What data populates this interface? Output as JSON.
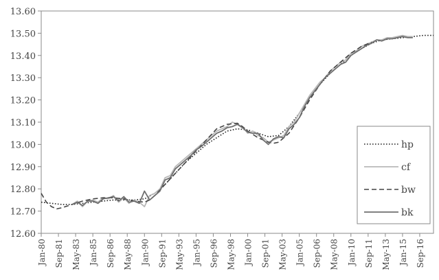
{
  "chart_data": {
    "type": "line",
    "title": "",
    "xlabel": "",
    "ylabel": "",
    "ylim": [
      12.6,
      13.6
    ],
    "yticks": [
      12.6,
      12.7,
      12.8,
      12.9,
      13.0,
      13.1,
      13.2,
      13.3,
      13.4,
      13.5,
      13.6
    ],
    "ytick_labels": [
      "12.60",
      "12.70",
      "12.80",
      "12.90",
      "13.00",
      "13.10",
      "13.20",
      "13.30",
      "13.40",
      "13.50",
      "13.60"
    ],
    "xlim": [
      "1980-01",
      "2018-01"
    ],
    "xtick_labels": [
      "Jan-80",
      "Sep-81",
      "May-83",
      "Jan-85",
      "Sep-86",
      "May-88",
      "Jan-90",
      "Sep-91",
      "May-93",
      "Jan-95",
      "Sep-96",
      "May-98",
      "Jan-00",
      "Sep-01",
      "May-03",
      "Jan-05",
      "Sep-06",
      "May-08",
      "Jan-10",
      "Sep-11",
      "May-13",
      "Jan-15",
      "Sep-16"
    ],
    "grid": false,
    "legend_position": "right",
    "series": [
      {
        "name": "hp",
        "style": "dotted",
        "color": "#222222",
        "x": [
          "1980-01",
          "1981-01",
          "1982-01",
          "1983-01",
          "1984-01",
          "1985-01",
          "1986-01",
          "1987-01",
          "1988-01",
          "1989-01",
          "1990-01",
          "1991-01",
          "1992-01",
          "1993-01",
          "1994-01",
          "1995-01",
          "1996-01",
          "1997-01",
          "1998-01",
          "1999-01",
          "2000-01",
          "2001-01",
          "2002-01",
          "2003-01",
          "2004-01",
          "2005-01",
          "2006-01",
          "2007-01",
          "2008-01",
          "2009-01",
          "2010-01",
          "2011-01",
          "2012-01",
          "2013-01",
          "2014-01",
          "2015-01",
          "2016-01",
          "2017-01",
          "2018-01"
        ],
        "y": [
          12.74,
          12.735,
          12.73,
          12.73,
          12.735,
          12.74,
          12.745,
          12.75,
          12.75,
          12.75,
          12.755,
          12.78,
          12.82,
          12.87,
          12.92,
          12.96,
          13.0,
          13.03,
          13.06,
          13.07,
          13.065,
          13.05,
          13.035,
          13.04,
          13.08,
          13.14,
          13.21,
          13.27,
          13.32,
          13.36,
          13.4,
          13.43,
          13.455,
          13.47,
          13.475,
          13.48,
          13.485,
          13.49,
          13.49
        ]
      },
      {
        "name": "cf",
        "style": "solid",
        "color": "#b8b8b8",
        "x": [
          "1983-01",
          "1983-07",
          "1984-01",
          "1984-07",
          "1985-01",
          "1985-07",
          "1986-01",
          "1986-07",
          "1987-01",
          "1987-07",
          "1988-01",
          "1988-07",
          "1989-01",
          "1989-07",
          "1990-01",
          "1990-07",
          "1991-01",
          "1991-07",
          "1992-01",
          "1992-07",
          "1993-01",
          "1993-07",
          "1994-01",
          "1994-07",
          "1995-01",
          "1995-07",
          "1996-01",
          "1996-07",
          "1997-01",
          "1997-07",
          "1998-01",
          "1998-07",
          "1999-01",
          "1999-07",
          "2000-01",
          "2000-07",
          "2001-01",
          "2001-07",
          "2002-01",
          "2002-07",
          "2003-01",
          "2003-07",
          "2004-01",
          "2004-07",
          "2005-01",
          "2005-07",
          "2006-01",
          "2006-07",
          "2007-01",
          "2007-07",
          "2008-01",
          "2008-07",
          "2009-01",
          "2009-07",
          "2010-01",
          "2010-07",
          "2011-01",
          "2011-07",
          "2012-01",
          "2012-07",
          "2013-01",
          "2013-07",
          "2014-01",
          "2014-07",
          "2015-01",
          "2015-07",
          "2016-01"
        ],
        "y": [
          12.73,
          12.745,
          12.72,
          12.745,
          12.75,
          12.74,
          12.76,
          12.755,
          12.77,
          12.74,
          12.76,
          12.735,
          12.75,
          12.74,
          12.72,
          12.77,
          12.78,
          12.8,
          12.85,
          12.86,
          12.9,
          12.92,
          12.94,
          12.96,
          12.98,
          13.0,
          13.02,
          13.04,
          13.06,
          13.07,
          13.08,
          13.1,
          13.09,
          13.08,
          13.05,
          13.06,
          13.04,
          13.03,
          13.01,
          13.02,
          13.03,
          13.04,
          13.08,
          13.1,
          13.14,
          13.18,
          13.22,
          13.25,
          13.28,
          13.3,
          13.33,
          13.35,
          13.37,
          13.38,
          13.41,
          13.42,
          13.44,
          13.45,
          13.46,
          13.47,
          13.47,
          13.48,
          13.48,
          13.485,
          13.49,
          13.485,
          13.485
        ]
      },
      {
        "name": "bw",
        "style": "dashed",
        "color": "#444444",
        "x": [
          "1980-01",
          "1980-07",
          "1981-01",
          "1981-07",
          "1982-01",
          "1983-01",
          "1984-01",
          "1985-01",
          "1986-01",
          "1987-01",
          "1988-01",
          "1989-01",
          "1990-01",
          "1990-07",
          "1991-01",
          "1992-01",
          "1993-01",
          "1994-01",
          "1995-01",
          "1996-01",
          "1997-01",
          "1998-01",
          "1999-01",
          "1999-07",
          "2000-01",
          "2001-01",
          "2002-01",
          "2002-07",
          "2003-01",
          "2004-01",
          "2005-01",
          "2006-01",
          "2007-01",
          "2008-01",
          "2009-01",
          "2010-01",
          "2011-01",
          "2012-01"
        ],
        "y": [
          12.78,
          12.74,
          12.72,
          12.71,
          12.715,
          12.73,
          12.745,
          12.755,
          12.76,
          12.76,
          12.755,
          12.745,
          12.74,
          12.75,
          12.77,
          12.82,
          12.87,
          12.92,
          12.97,
          13.02,
          13.07,
          13.09,
          13.095,
          13.08,
          13.06,
          13.03,
          13.01,
          13.005,
          13.01,
          13.05,
          13.12,
          13.2,
          13.27,
          13.33,
          13.37,
          13.41,
          13.44,
          13.46
        ]
      },
      {
        "name": "bk",
        "style": "solid",
        "color": "#6e6e6e",
        "x": [
          "1983-01",
          "1983-07",
          "1984-01",
          "1984-07",
          "1985-01",
          "1985-07",
          "1986-01",
          "1986-07",
          "1987-01",
          "1987-07",
          "1988-01",
          "1988-07",
          "1989-01",
          "1989-07",
          "1990-01",
          "1990-07",
          "1991-01",
          "1991-07",
          "1992-01",
          "1992-07",
          "1993-01",
          "1993-07",
          "1994-01",
          "1994-07",
          "1995-01",
          "1995-07",
          "1996-01",
          "1996-07",
          "1997-01",
          "1997-07",
          "1998-01",
          "1998-07",
          "1999-01",
          "1999-07",
          "2000-01",
          "2000-07",
          "2001-01",
          "2001-07",
          "2002-01",
          "2002-07",
          "2003-01",
          "2003-07",
          "2004-01",
          "2004-07",
          "2005-01",
          "2005-07",
          "2006-01",
          "2006-07",
          "2007-01",
          "2007-07",
          "2008-01",
          "2008-07",
          "2009-01",
          "2009-07",
          "2010-01",
          "2010-07",
          "2011-01",
          "2011-07",
          "2012-01",
          "2012-07",
          "2013-01",
          "2013-07",
          "2014-01",
          "2014-07",
          "2015-01",
          "2015-07",
          "2016-01"
        ],
        "y": [
          12.73,
          12.74,
          12.725,
          12.745,
          12.745,
          12.735,
          12.755,
          12.76,
          12.765,
          12.745,
          12.765,
          12.74,
          12.745,
          12.735,
          12.79,
          12.75,
          12.77,
          12.79,
          12.84,
          12.85,
          12.89,
          12.91,
          12.93,
          12.95,
          12.975,
          12.99,
          13.01,
          13.03,
          13.05,
          13.06,
          13.075,
          13.08,
          13.09,
          13.075,
          13.055,
          13.05,
          13.05,
          13.02,
          13.0,
          13.025,
          13.035,
          13.03,
          13.07,
          13.09,
          13.12,
          13.17,
          13.21,
          13.24,
          13.27,
          13.3,
          13.32,
          13.34,
          13.36,
          13.37,
          13.4,
          13.415,
          13.43,
          13.445,
          13.455,
          13.47,
          13.465,
          13.475,
          13.475,
          13.48,
          13.485,
          13.48,
          13.48
        ]
      }
    ]
  }
}
